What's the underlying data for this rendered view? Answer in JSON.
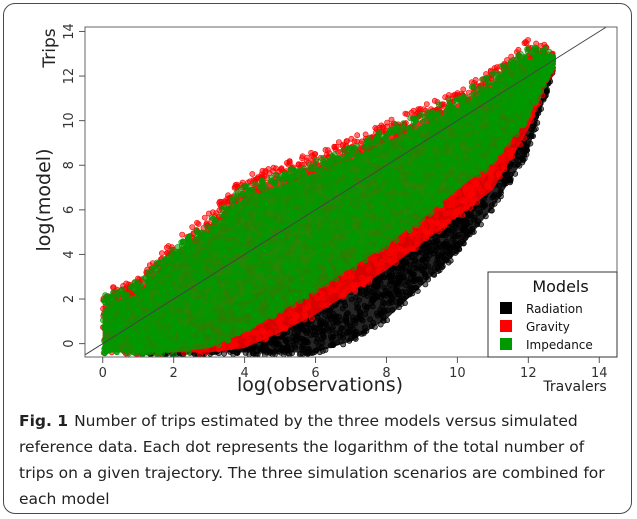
{
  "caption": {
    "label": "Fig. 1",
    "text": "Number of trips estimated by the three models versus simulated reference data. Each dot represents the logarithm of the total number of trips on a given trajectory. The three simulation scenarios are combined for each model"
  },
  "chart_data": {
    "type": "scatter",
    "xlabel": "log(observations)",
    "ylabel": "log(model)",
    "corner_labels": {
      "top_left": "Trips",
      "bottom_right": "Travalers"
    },
    "xlim": [
      -0.5,
      14.5
    ],
    "ylim": [
      -0.6,
      14.2
    ],
    "x_ticks": [
      0,
      2,
      4,
      6,
      8,
      10,
      12,
      14
    ],
    "y_ticks": [
      0,
      2,
      4,
      6,
      8,
      10,
      12,
      14
    ],
    "reference_line": {
      "type": "identity",
      "from": [
        -0.5,
        -0.5
      ],
      "to": [
        14.5,
        14.5
      ]
    },
    "grid": false,
    "legend": {
      "title": "Models",
      "position": "bottom-right",
      "entries": [
        {
          "name": "Radiation",
          "color": "#000000"
        },
        {
          "name": "Gravity",
          "color": "#ff0000"
        },
        {
          "name": "Impedance",
          "color": "#009900"
        }
      ]
    },
    "series": [
      {
        "name": "Radiation",
        "color": "#000000",
        "marker": "open-circle",
        "band": {
          "x": [
            1.0,
            2.0,
            3.0,
            4.0,
            5.0,
            6.0,
            7.0,
            8.0,
            9.0,
            10.0,
            11.0,
            12.0,
            12.7
          ],
          "y_low": [
            -0.5,
            -0.5,
            -0.5,
            -0.5,
            -0.5,
            -0.5,
            0.0,
            1.0,
            2.5,
            4.0,
            6.0,
            8.5,
            12.2
          ],
          "y_high": [
            0.3,
            0.4,
            1.0,
            1.7,
            2.4,
            3.1,
            3.9,
            4.8,
            5.8,
            7.0,
            9.5,
            12.3,
            12.8
          ]
        }
      },
      {
        "name": "Gravity",
        "color": "#ff0000",
        "marker": "open-circle",
        "band": {
          "x": [
            0.0,
            1.0,
            2.0,
            3.0,
            4.0,
            5.0,
            6.0,
            7.0,
            8.0,
            9.0,
            10.0,
            11.0,
            12.0,
            12.7
          ],
          "y_low": [
            -0.5,
            -0.5,
            -0.5,
            -0.5,
            -0.3,
            0.4,
            1.2,
            2.2,
            3.2,
            4.4,
            5.6,
            6.8,
            9.5,
            12.3
          ],
          "y_high": [
            2.0,
            2.7,
            4.3,
            5.5,
            7.2,
            7.7,
            8.3,
            8.9,
            9.6,
            10.3,
            11.0,
            12.0,
            13.3,
            13.0
          ]
        }
      },
      {
        "name": "Impedance",
        "color": "#009900",
        "marker": "open-circle",
        "band": {
          "x": [
            0.0,
            1.0,
            2.0,
            3.0,
            4.0,
            5.0,
            6.0,
            7.0,
            8.0,
            9.0,
            10.0,
            11.0,
            12.0,
            12.7
          ],
          "y_low": [
            -0.5,
            -0.5,
            -0.5,
            -0.3,
            0.4,
            1.3,
            2.3,
            3.3,
            4.3,
            5.5,
            6.8,
            8.0,
            10.0,
            12.4
          ],
          "y_high": [
            1.8,
            2.5,
            4.0,
            5.2,
            6.8,
            7.3,
            7.9,
            8.5,
            9.3,
            10.0,
            10.8,
            11.8,
            13.0,
            12.9
          ]
        }
      }
    ]
  }
}
